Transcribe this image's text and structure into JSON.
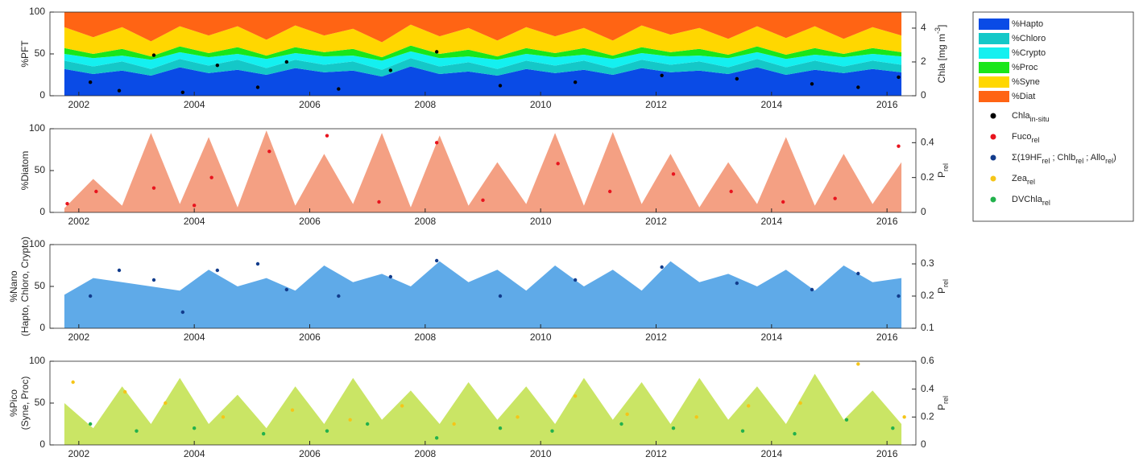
{
  "chart_data": [
    {
      "type": "area",
      "stacked": true,
      "ylabel": [
        "%PFT"
      ],
      "y2label": {
        "parts": [
          "Chla [mg m",
          "-3",
          "]"
        ],
        "script": "super"
      },
      "x": [
        2001.75,
        2002.25,
        2002.75,
        2003.25,
        2003.75,
        2004.25,
        2004.75,
        2005.25,
        2005.75,
        2006.25,
        2006.75,
        2007.25,
        2007.75,
        2008.25,
        2008.75,
        2009.25,
        2009.75,
        2010.25,
        2010.75,
        2011.25,
        2011.75,
        2012.25,
        2012.75,
        2013.25,
        2013.75,
        2014.25,
        2014.75,
        2015.25,
        2015.75,
        2016.25
      ],
      "series": [
        {
          "name": "%Hapto",
          "color": "#0a4be6",
          "values": [
            32,
            26,
            30,
            24,
            34,
            27,
            31,
            25,
            33,
            28,
            30,
            23,
            35,
            26,
            29,
            24,
            32,
            27,
            31,
            25,
            33,
            28,
            30,
            26,
            34,
            25,
            31,
            27,
            32,
            28
          ]
        },
        {
          "name": "%Chloro",
          "color": "#14c8c8",
          "values": [
            10,
            9,
            11,
            8,
            10,
            9,
            12,
            8,
            10,
            9,
            11,
            8,
            10,
            9,
            11,
            8,
            10,
            9,
            11,
            8,
            10,
            9,
            11,
            8,
            10,
            9,
            11,
            8,
            10,
            9
          ]
        },
        {
          "name": "%Crypto",
          "color": "#14f0f0",
          "values": [
            8,
            10,
            7,
            11,
            8,
            10,
            7,
            11,
            8,
            10,
            7,
            11,
            8,
            10,
            7,
            11,
            8,
            10,
            7,
            11,
            8,
            10,
            7,
            11,
            8,
            10,
            7,
            11,
            8,
            10
          ]
        },
        {
          "name": "%Proc",
          "color": "#19e619",
          "values": [
            7,
            5,
            8,
            4,
            7,
            5,
            8,
            4,
            7,
            5,
            8,
            4,
            7,
            5,
            8,
            4,
            7,
            5,
            8,
            4,
            7,
            5,
            8,
            4,
            7,
            5,
            8,
            4,
            7,
            5
          ]
        },
        {
          "name": "%Syne",
          "color": "#ffd700",
          "values": [
            25,
            20,
            26,
            18,
            24,
            21,
            25,
            19,
            26,
            20,
            24,
            18,
            25,
            21,
            26,
            19,
            25,
            20,
            24,
            18,
            26,
            21,
            25,
            19,
            24,
            20,
            26,
            18,
            25,
            20
          ]
        },
        {
          "name": "%Diat",
          "color": "#ff6414",
          "values": [
            18,
            30,
            18,
            35,
            17,
            28,
            17,
            33,
            16,
            28,
            20,
            36,
            15,
            29,
            19,
            34,
            18,
            29,
            19,
            34,
            16,
            27,
            19,
            32,
            17,
            31,
            17,
            32,
            18,
            28
          ]
        }
      ],
      "points": [
        {
          "name_parts": [
            "Chla",
            "in-situ"
          ],
          "color": "#000000",
          "axis": "y2",
          "x": [
            2002.2,
            2002.7,
            2003.3,
            2003.8,
            2004.4,
            2005.1,
            2005.6,
            2006.5,
            2007.4,
            2008.2,
            2009.3,
            2010.6,
            2012.1,
            2013.4,
            2014.7,
            2015.5,
            2016.2
          ],
          "values": [
            0.8,
            0.3,
            2.4,
            0.2,
            1.8,
            0.5,
            2.0,
            0.4,
            1.5,
            2.6,
            0.6,
            0.8,
            1.2,
            1.0,
            0.7,
            0.5,
            1.1
          ]
        }
      ],
      "xlim": [
        2001.5,
        2016.5
      ],
      "xticks": [
        2002,
        2004,
        2006,
        2008,
        2010,
        2012,
        2014,
        2016
      ],
      "ylim": [
        0,
        100
      ],
      "yticks": [
        0,
        50,
        100
      ],
      "y2lim": [
        0,
        4.95
      ],
      "y2ticks": [
        0,
        2,
        4
      ]
    },
    {
      "type": "area",
      "color": "#f0805a",
      "ylabel": [
        "%Diatom"
      ],
      "y2label": {
        "parts": [
          "P",
          "rel"
        ],
        "script": "sub"
      },
      "x": [
        2001.75,
        2002.25,
        2002.75,
        2003.25,
        2003.75,
        2004.25,
        2004.75,
        2005.25,
        2005.75,
        2006.25,
        2006.75,
        2007.25,
        2007.75,
        2008.25,
        2008.75,
        2009.25,
        2009.75,
        2010.25,
        2010.75,
        2011.25,
        2011.75,
        2012.25,
        2012.75,
        2013.25,
        2013.75,
        2014.25,
        2014.75,
        2015.25,
        2015.75,
        2016.25
      ],
      "values": [
        5,
        40,
        8,
        95,
        10,
        90,
        6,
        98,
        8,
        70,
        10,
        95,
        6,
        92,
        8,
        60,
        10,
        95,
        8,
        96,
        10,
        70,
        6,
        60,
        10,
        90,
        8,
        70,
        10,
        60
      ],
      "points": [
        {
          "name_parts": [
            "Fuco",
            "rel"
          ],
          "color": "#e8141e",
          "axis": "y2",
          "x": [
            2001.8,
            2002.3,
            2003.3,
            2004.0,
            2004.3,
            2005.3,
            2006.3,
            2007.2,
            2008.2,
            2009.0,
            2010.3,
            2011.2,
            2012.3,
            2013.3,
            2014.2,
            2015.1,
            2016.2
          ],
          "values": [
            0.05,
            0.12,
            0.14,
            0.04,
            0.2,
            0.35,
            0.44,
            0.06,
            0.4,
            0.07,
            0.28,
            0.12,
            0.22,
            0.12,
            0.06,
            0.08,
            0.38
          ]
        }
      ],
      "xlim": [
        2001.5,
        2016.5
      ],
      "xticks": [
        2002,
        2004,
        2006,
        2008,
        2010,
        2012,
        2014,
        2016
      ],
      "ylim": [
        0,
        100
      ],
      "yticks": [
        0,
        50,
        100
      ],
      "y2lim": [
        0,
        0.48
      ],
      "y2ticks": [
        0,
        0.2,
        0.4
      ]
    },
    {
      "type": "area",
      "color": "#2a8ee0",
      "ylabel": [
        "%Nano",
        "(Hapto, Chloro, Crypto)"
      ],
      "y2label": {
        "parts": [
          "P",
          "rel"
        ],
        "script": "sub"
      },
      "x": [
        2001.75,
        2002.25,
        2002.75,
        2003.25,
        2003.75,
        2004.25,
        2004.75,
        2005.25,
        2005.75,
        2006.25,
        2006.75,
        2007.25,
        2007.75,
        2008.25,
        2008.75,
        2009.25,
        2009.75,
        2010.25,
        2010.75,
        2011.25,
        2011.75,
        2012.25,
        2012.75,
        2013.25,
        2013.75,
        2014.25,
        2014.75,
        2015.25,
        2015.75,
        2016.25
      ],
      "values": [
        40,
        60,
        55,
        50,
        45,
        70,
        50,
        60,
        45,
        75,
        55,
        65,
        50,
        80,
        55,
        70,
        45,
        75,
        50,
        70,
        45,
        80,
        55,
        65,
        50,
        70,
        45,
        75,
        55,
        60
      ],
      "points": [
        {
          "name_parts": [
            "Σ(19HF",
            "rel",
            " ; Chlb",
            "rel",
            " ; Allo",
            "rel",
            ")"
          ],
          "color": "#123c8c",
          "axis": "y2",
          "x": [
            2002.2,
            2002.7,
            2003.3,
            2003.8,
            2004.4,
            2005.1,
            2005.6,
            2006.5,
            2007.4,
            2008.2,
            2009.3,
            2010.6,
            2012.1,
            2013.4,
            2014.7,
            2015.5,
            2016.2
          ],
          "values": [
            0.2,
            0.28,
            0.25,
            0.15,
            0.28,
            0.3,
            0.22,
            0.2,
            0.26,
            0.31,
            0.2,
            0.25,
            0.29,
            0.24,
            0.22,
            0.27,
            0.2
          ]
        }
      ],
      "xlim": [
        2001.5,
        2016.5
      ],
      "xticks": [
        2002,
        2004,
        2006,
        2008,
        2010,
        2012,
        2014,
        2016
      ],
      "ylim": [
        0,
        100
      ],
      "yticks": [
        0,
        50,
        100
      ],
      "y2lim": [
        0.1,
        0.36
      ],
      "y2ticks": [
        0.1,
        0.2,
        0.3
      ]
    },
    {
      "type": "area",
      "color": "#b8dc32",
      "ylabel": [
        "%Pico",
        "(Syne, Proc)"
      ],
      "y2label": {
        "parts": [
          "P",
          "rel"
        ],
        "script": "sub"
      },
      "x": [
        2001.75,
        2002.25,
        2002.75,
        2003.25,
        2003.75,
        2004.25,
        2004.75,
        2005.25,
        2005.75,
        2006.25,
        2006.75,
        2007.25,
        2007.75,
        2008.25,
        2008.75,
        2009.25,
        2009.75,
        2010.25,
        2010.75,
        2011.25,
        2011.75,
        2012.25,
        2012.75,
        2013.25,
        2013.75,
        2014.25,
        2014.75,
        2015.25,
        2015.75,
        2016.25
      ],
      "values": [
        50,
        20,
        70,
        25,
        80,
        25,
        60,
        20,
        70,
        25,
        80,
        30,
        65,
        25,
        75,
        30,
        70,
        25,
        80,
        30,
        75,
        25,
        80,
        30,
        70,
        25,
        85,
        30,
        65,
        25
      ],
      "points": [
        {
          "name_parts": [
            "Zea",
            "rel"
          ],
          "color": "#f5c518",
          "axis": "y2",
          "x": [
            2001.9,
            2002.8,
            2003.5,
            2004.5,
            2005.7,
            2006.7,
            2007.6,
            2008.5,
            2009.6,
            2010.6,
            2011.5,
            2012.7,
            2013.6,
            2014.5,
            2015.5,
            2016.3
          ],
          "values": [
            0.45,
            0.38,
            0.3,
            0.2,
            0.25,
            0.18,
            0.28,
            0.15,
            0.2,
            0.35,
            0.22,
            0.2,
            0.28,
            0.3,
            0.58,
            0.2
          ]
        },
        {
          "name_parts": [
            "DVChla",
            "rel"
          ],
          "color": "#22b14c",
          "axis": "y2",
          "x": [
            2002.2,
            2003.0,
            2004.0,
            2005.2,
            2006.3,
            2007.0,
            2008.2,
            2009.3,
            2010.2,
            2011.4,
            2012.3,
            2013.5,
            2014.4,
            2015.3,
            2016.1
          ],
          "values": [
            0.15,
            0.1,
            0.12,
            0.08,
            0.1,
            0.15,
            0.05,
            0.12,
            0.1,
            0.15,
            0.12,
            0.1,
            0.08,
            0.18,
            0.12
          ]
        }
      ],
      "xlim": [
        2001.5,
        2016.5
      ],
      "xticks": [
        2002,
        2004,
        2006,
        2008,
        2010,
        2012,
        2014,
        2016
      ],
      "ylim": [
        0,
        100
      ],
      "yticks": [
        0,
        50,
        100
      ],
      "y2lim": [
        0,
        0.6
      ],
      "y2ticks": [
        0,
        0.2,
        0.4,
        0.6
      ]
    }
  ]
}
